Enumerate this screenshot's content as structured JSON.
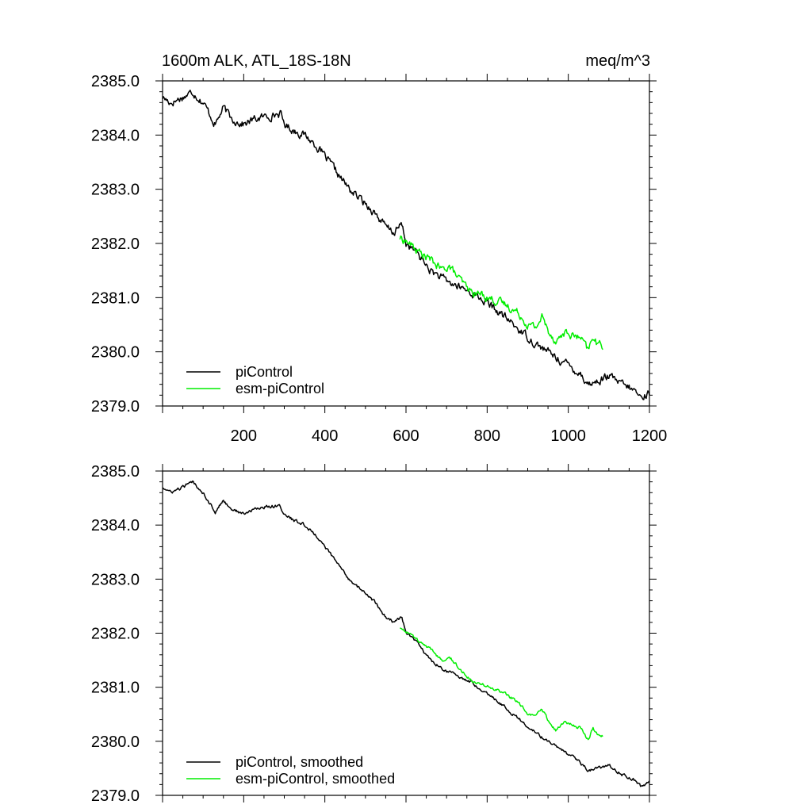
{
  "chart_data": {
    "title_left": "1600m ALK, ATL_18S-18N",
    "title_right": "meq/m^3",
    "xlim": [
      0,
      1200
    ],
    "ylim": [
      2379.0,
      2385.0
    ],
    "x_ticks": [
      200,
      400,
      600,
      800,
      1000,
      1200
    ],
    "y_ticks": [
      "2379.0",
      "2380.0",
      "2381.0",
      "2382.0",
      "2383.0",
      "2384.0",
      "2385.0"
    ],
    "panels": [
      {
        "type": "line",
        "legend_location": "bottom-left",
        "noise": 0.06,
        "series": [
          {
            "name": "piControl",
            "color": "#000000",
            "x": [
              0,
              20,
              50,
              75,
              100,
              130,
              150,
              170,
              200,
              230,
              260,
              290,
              300,
              320,
              350,
              380,
              400,
              430,
              460,
              490,
              520,
              550,
              570,
              590,
              600,
              630,
              660,
              700,
              730,
              760,
              800,
              850,
              880,
              920,
              960,
              1000,
              1030,
              1050,
              1070,
              1100,
              1130,
              1160,
              1180,
              1200
            ],
            "y": [
              2384.7,
              2384.6,
              2384.7,
              2384.8,
              2384.6,
              2384.2,
              2384.5,
              2384.3,
              2384.2,
              2384.3,
              2384.35,
              2384.4,
              2384.2,
              2384.1,
              2384.0,
              2383.8,
              2383.6,
              2383.3,
              2383.0,
              2382.8,
              2382.6,
              2382.3,
              2382.2,
              2382.35,
              2382.0,
              2381.8,
              2381.5,
              2381.3,
              2381.2,
              2381.1,
              2380.9,
              2380.6,
              2380.4,
              2380.15,
              2379.95,
              2379.75,
              2379.6,
              2379.4,
              2379.45,
              2379.55,
              2379.4,
              2379.3,
              2379.15,
              2379.25
            ]
          },
          {
            "name": "esm-piControl",
            "color": "#00ee00",
            "x": [
              585,
              600,
              630,
              660,
              690,
              705,
              730,
              760,
              790,
              820,
              850,
              880,
              900,
              920,
              935,
              950,
              970,
              990,
              1010,
              1030,
              1050,
              1060,
              1070,
              1085
            ],
            "y": [
              2382.1,
              2382.05,
              2381.85,
              2381.7,
              2381.5,
              2381.6,
              2381.35,
              2381.1,
              2381.05,
              2380.95,
              2380.85,
              2380.7,
              2380.5,
              2380.45,
              2380.65,
              2380.4,
              2380.2,
              2380.35,
              2380.3,
              2380.25,
              2380.0,
              2380.3,
              2380.15,
              2380.1
            ]
          }
        ]
      },
      {
        "type": "line",
        "legend_location": "bottom-left",
        "noise": 0.025,
        "series": [
          {
            "name": "piControl, smoothed",
            "color": "#000000",
            "x": [
              0,
              20,
              50,
              75,
              100,
              130,
              150,
              170,
              200,
              230,
              260,
              290,
              300,
              320,
              350,
              380,
              400,
              430,
              460,
              490,
              520,
              550,
              570,
              590,
              600,
              630,
              660,
              700,
              730,
              760,
              800,
              850,
              880,
              920,
              960,
              1000,
              1030,
              1050,
              1070,
              1100,
              1130,
              1160,
              1180,
              1200
            ],
            "y": [
              2384.7,
              2384.6,
              2384.7,
              2384.8,
              2384.6,
              2384.25,
              2384.45,
              2384.3,
              2384.2,
              2384.3,
              2384.35,
              2384.35,
              2384.2,
              2384.1,
              2384.0,
              2383.8,
              2383.6,
              2383.3,
              2383.0,
              2382.8,
              2382.6,
              2382.3,
              2382.2,
              2382.3,
              2382.0,
              2381.8,
              2381.5,
              2381.3,
              2381.2,
              2381.1,
              2380.9,
              2380.6,
              2380.4,
              2380.15,
              2379.95,
              2379.75,
              2379.6,
              2379.45,
              2379.5,
              2379.55,
              2379.4,
              2379.3,
              2379.15,
              2379.25
            ]
          },
          {
            "name": "esm-piControl, smoothed",
            "color": "#00ee00",
            "x": [
              585,
              600,
              630,
              660,
              690,
              705,
              730,
              760,
              790,
              820,
              850,
              880,
              900,
              920,
              935,
              950,
              970,
              990,
              1010,
              1030,
              1050,
              1060,
              1070,
              1085
            ],
            "y": [
              2382.1,
              2382.05,
              2381.85,
              2381.7,
              2381.5,
              2381.6,
              2381.35,
              2381.15,
              2381.05,
              2380.95,
              2380.85,
              2380.7,
              2380.5,
              2380.45,
              2380.6,
              2380.4,
              2380.2,
              2380.35,
              2380.3,
              2380.25,
              2380.0,
              2380.25,
              2380.15,
              2380.1
            ]
          }
        ]
      }
    ]
  }
}
